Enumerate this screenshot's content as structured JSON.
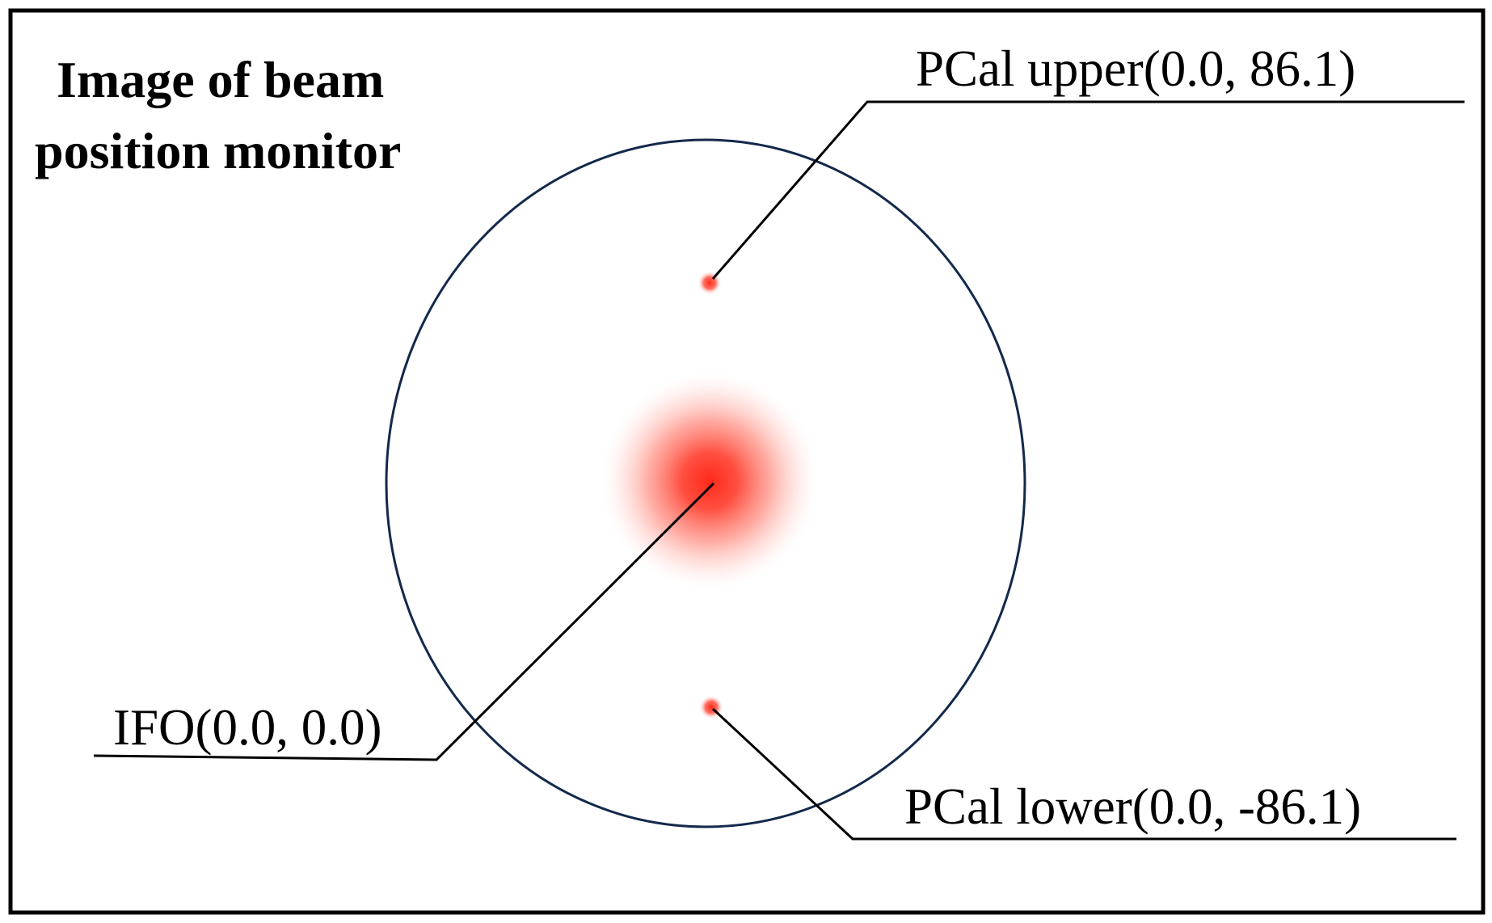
{
  "title": {
    "line1": "Image of beam",
    "line2": "position monitor"
  },
  "labels": {
    "pcal_upper": "PCal upper(0.0, 86.1)",
    "ifo": "IFO(0.0, 0.0)",
    "pcal_lower": "PCal lower(0.0, -86.1)"
  },
  "colors": {
    "frame": "#000000",
    "monitor_circle": "#13294b",
    "beam_spot": "#ff2a1a",
    "leader_line": "#000000"
  }
}
